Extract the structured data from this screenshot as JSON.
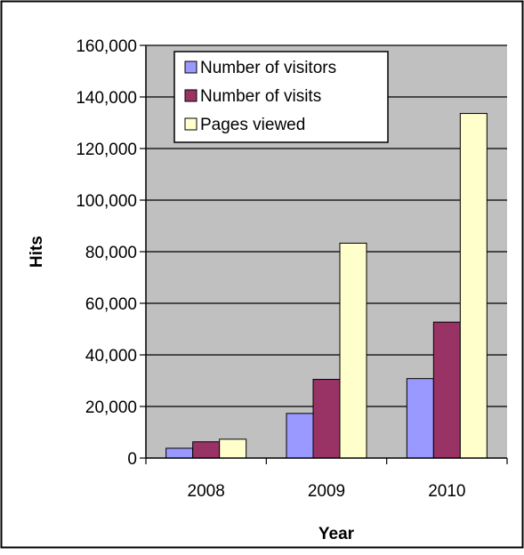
{
  "chart_data": {
    "type": "bar",
    "title": "",
    "xlabel": "Year",
    "ylabel": "Hits",
    "categories": [
      "2008",
      "2009",
      "2010"
    ],
    "series": [
      {
        "name": "Number of visitors",
        "color": "#9999ff",
        "values": [
          3800,
          17300,
          30800
        ]
      },
      {
        "name": "Number of visits",
        "color": "#993366",
        "values": [
          6300,
          30500,
          52700
        ]
      },
      {
        "name": "Pages viewed",
        "color": "#ffffcc",
        "values": [
          7300,
          83300,
          133600
        ]
      }
    ],
    "ylim": [
      0,
      160000
    ],
    "yticks": [
      0,
      20000,
      40000,
      60000,
      80000,
      100000,
      120000,
      140000,
      160000
    ],
    "ytick_labels": [
      "0",
      "20,000",
      "40,000",
      "60,000",
      "80,000",
      "100,000",
      "120,000",
      "140,000",
      "160,000"
    ],
    "grid": true,
    "plot_background": "#c0c0c0",
    "legend_position": "top-left"
  }
}
